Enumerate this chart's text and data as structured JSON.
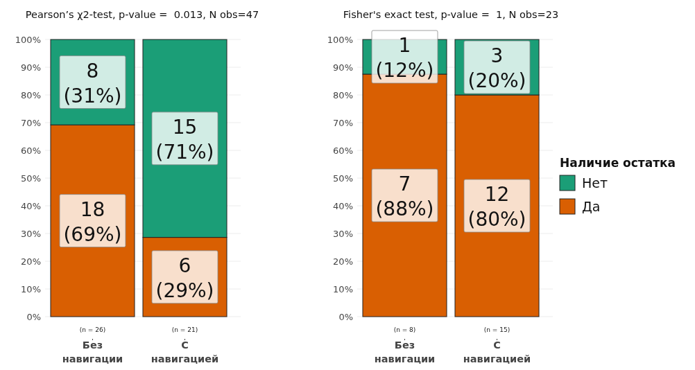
{
  "chart_data": [
    {
      "type": "bar",
      "stacked": true,
      "title": "Pearson’s χ2-test, p-value =  0.013, N obs=47",
      "categories": [
        "Без навигации",
        "С навигацией"
      ],
      "ylim": [
        0,
        100
      ],
      "yticks": [
        {
          "value": 0,
          "label": "0%"
        },
        {
          "value": 10,
          "label": "10%"
        },
        {
          "value": 20,
          "label": "20%"
        },
        {
          "value": 30,
          "label": "30%"
        },
        {
          "value": 40,
          "label": "40%"
        },
        {
          "value": 50,
          "label": "50%"
        },
        {
          "value": 60,
          "label": "60%"
        },
        {
          "value": 70,
          "label": "70%"
        },
        {
          "value": 80,
          "label": "80%"
        },
        {
          "value": 90,
          "label": "90%"
        },
        {
          "value": 100,
          "label": "100%"
        }
      ],
      "grid": "y",
      "legend": false,
      "series": [
        {
          "color": "#d95f02",
          "values": [
            69.2,
            28.6
          ],
          "value_labels": [
            "18\n(69%)",
            "6\n(29%)"
          ]
        },
        {
          "color": "#1b9e77",
          "values": [
            30.8,
            71.4
          ],
          "value_labels": [
            "8\n(31%)",
            "15\n(71%)"
          ]
        }
      ],
      "annotations": [
        {
          "text": "(n = 26)",
          "x": "Без навигации"
        },
        {
          "text": "(n = 21)",
          "x": "С навигацией"
        }
      ]
    },
    {
      "type": "bar",
      "stacked": true,
      "title": "Fisher's exact test, p-value =  1, N obs=23",
      "categories": [
        "Без навигации",
        "С навигацией"
      ],
      "ylim": [
        0,
        100
      ],
      "yticks": [
        {
          "value": 0,
          "label": "0%"
        },
        {
          "value": 10,
          "label": "10%"
        },
        {
          "value": 20,
          "label": "20%"
        },
        {
          "value": 30,
          "label": "30%"
        },
        {
          "value": 40,
          "label": "40%"
        },
        {
          "value": 50,
          "label": "50%"
        },
        {
          "value": 60,
          "label": "60%"
        },
        {
          "value": 70,
          "label": "70%"
        },
        {
          "value": 80,
          "label": "80%"
        },
        {
          "value": 90,
          "label": "90%"
        },
        {
          "value": 100,
          "label": "100%"
        }
      ],
      "grid": "y",
      "legend": "right",
      "legend_title": "Наличие остатка",
      "series": [
        {
          "name": "Да",
          "color": "#d95f02",
          "values": [
            87.5,
            80
          ],
          "value_labels": [
            "7\n(88%)",
            "12\n(80%)"
          ]
        },
        {
          "name": "Нет",
          "color": "#1b9e77",
          "values": [
            12.5,
            20
          ],
          "value_labels": [
            "1\n(12%)",
            "3\n(20%)"
          ]
        }
      ],
      "annotations": [
        {
          "text": "(n = 8)",
          "x": "Без навигации"
        },
        {
          "text": "(n = 15)",
          "x": "С навигацией"
        }
      ]
    }
  ]
}
